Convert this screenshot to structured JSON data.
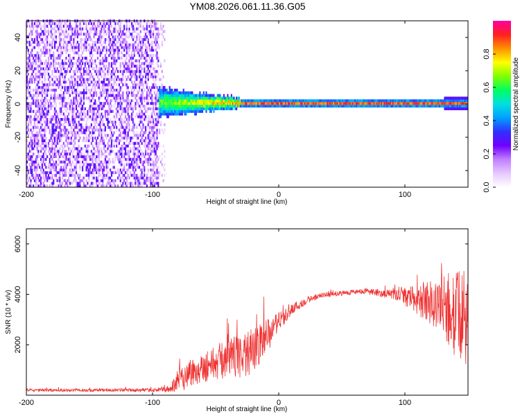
{
  "chart_data": [
    {
      "type": "heatmap",
      "title": "YM08.2026.061.11.36.G05",
      "xlabel": "Height of straight line (km)",
      "ylabel": "Frequency (Hz)",
      "xlim": [
        -200,
        150
      ],
      "ylim": [
        -50,
        50
      ],
      "xticks": [
        -200,
        -100,
        0,
        100
      ],
      "yticks": [
        -40,
        -20,
        0,
        20,
        40
      ],
      "colorbar": {
        "label": "Normalized spectral amplitude",
        "range": [
          0,
          1
        ],
        "ticks": [
          "0.0",
          "0.2",
          "0.4",
          "0.6",
          "0.8"
        ],
        "colors": [
          "#ffffff",
          "#e8c8ff",
          "#c080ff",
          "#7000ff",
          "#3030ff",
          "#00a0ff",
          "#00e0e0",
          "#00ff60",
          "#80ff00",
          "#ffff00",
          "#ff9000",
          "#ff2020",
          "#ff00a0"
        ]
      },
      "description_regions": {
        "noise_band_km": [
          -200,
          -95
        ],
        "transition_km": [
          -95,
          -30
        ],
        "narrow_line_km": [
          -30,
          150
        ],
        "line_center_hz": 0
      }
    },
    {
      "type": "line",
      "xlabel": "Height of straight line (km)",
      "ylabel": "SNR (10 * v/v)",
      "xlim": [
        -200,
        150
      ],
      "ylim": [
        0,
        6600
      ],
      "xticks": [
        -200,
        -100,
        0,
        100
      ],
      "yticks": [
        2000,
        4000,
        6000
      ],
      "series": [
        {
          "name": "SNR",
          "color": "#ee3333",
          "envelope": {
            "x": [
              -200,
              -150,
              -100,
              -85,
              -80,
              -70,
              -60,
              -50,
              -40,
              -30,
              -20,
              -10,
              0,
              10,
              20,
              30,
              40,
              50,
              60,
              70,
              80,
              90,
              100,
              110,
              120,
              130,
              140,
              150
            ],
            "y": [
              200,
              200,
              200,
              250,
              600,
              900,
              1100,
              1300,
              1450,
              1600,
              1750,
              2300,
              2900,
              3400,
              3700,
              3900,
              4000,
              4050,
              4100,
              4100,
              4050,
              4000,
              3900,
              3800,
              3700,
              3500,
              3200,
              3000
            ],
            "spread": [
              60,
              60,
              70,
              150,
              500,
              600,
              600,
              700,
              800,
              900,
              900,
              700,
              400,
              250,
              150,
              120,
              100,
              100,
              100,
              120,
              150,
              200,
              350,
              600,
              900,
              1300,
              1700,
              2000
            ]
          }
        }
      ]
    }
  ]
}
